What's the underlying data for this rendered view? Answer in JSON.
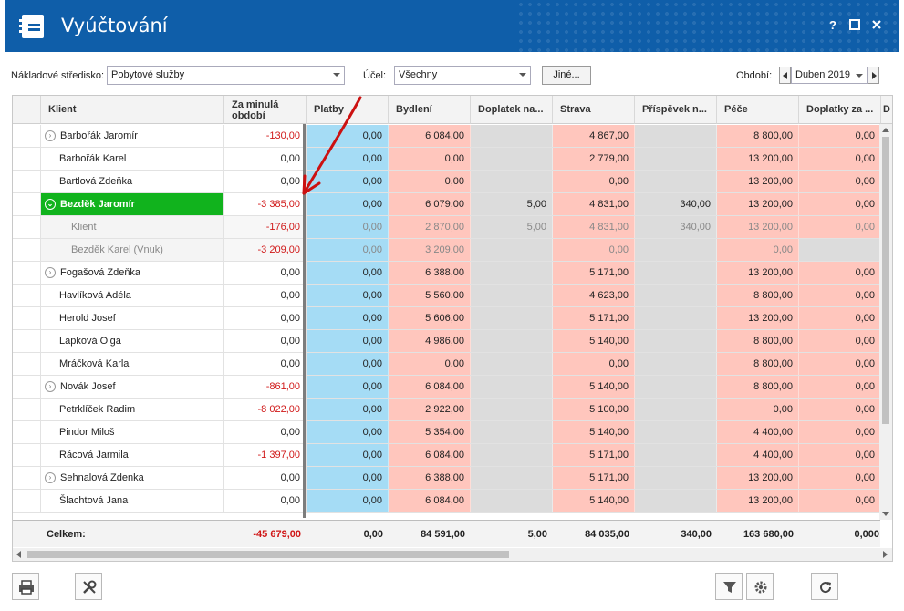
{
  "window": {
    "title": "Vyúčtování",
    "help_label": "?",
    "maximize_label": "□",
    "close_label": "✕",
    "icon": "ledger-icon",
    "accent": "#0f5ea9"
  },
  "filters": {
    "cost_center_label": "Nákladové středisko:",
    "cost_center_value": "Pobytové služby",
    "purpose_label": "Účel:",
    "purpose_value": "Všechny",
    "other_button": "Jiné...",
    "period_label": "Období:",
    "period_value": "Duben 2019"
  },
  "columns": {
    "client": "Klient",
    "previous_period_line1": "Za minulá",
    "previous_period_line2": "období",
    "payments": "Platby",
    "housing": "Bydlení",
    "surcharge": "Doplatek na...",
    "food": "Strava",
    "contribution": "Příspěvek n...",
    "care": "Péče",
    "surcharges_for": "Doplatky za ...",
    "next": "D"
  },
  "rows": [
    {
      "name": "Barbořák Jaromír",
      "prev": "-130,00",
      "pay": "0,00",
      "bydl": "6 084,00",
      "dopl": "",
      "strava": "4 867,00",
      "prisp": "",
      "pece": "8 800,00",
      "dopl2": "0,00"
    },
    {
      "name": "Barbořák Karel",
      "prev": "0,00",
      "pay": "0,00",
      "bydl": "0,00",
      "dopl": "",
      "strava": "2 779,00",
      "prisp": "",
      "pece": "13 200,00",
      "dopl2": "0,00"
    },
    {
      "name": "Bartlová Zdeňka",
      "prev": "0,00",
      "pay": "0,00",
      "bydl": "0,00",
      "dopl": "",
      "strava": "0,00",
      "prisp": "",
      "pece": "13 200,00",
      "dopl2": "0,00"
    },
    {
      "name": "Bezděk Jaromír",
      "prev": "-3 385,00",
      "pay": "0,00",
      "bydl": "6 079,00",
      "dopl": "5,00",
      "strava": "4 831,00",
      "prisp": "340,00",
      "pece": "13 200,00",
      "dopl2": "0,00"
    },
    {
      "name": "Klient",
      "prev": "-176,00",
      "pay": "0,00",
      "bydl": "2 870,00",
      "dopl": "5,00",
      "strava": "4 831,00",
      "prisp": "340,00",
      "pece": "13 200,00",
      "dopl2": "0,00"
    },
    {
      "name": "Bezděk Karel (Vnuk)",
      "prev": "-3 209,00",
      "pay": "0,00",
      "bydl": "3 209,00",
      "dopl": "",
      "strava": "0,00",
      "prisp": "",
      "pece": "0,00",
      "dopl2": ""
    },
    {
      "name": "Fogašová Zdeňka",
      "prev": "0,00",
      "pay": "0,00",
      "bydl": "6 388,00",
      "dopl": "",
      "strava": "5 171,00",
      "prisp": "",
      "pece": "13 200,00",
      "dopl2": "0,00"
    },
    {
      "name": "Havlíková Adéla",
      "prev": "0,00",
      "pay": "0,00",
      "bydl": "5 560,00",
      "dopl": "",
      "strava": "4 623,00",
      "prisp": "",
      "pece": "8 800,00",
      "dopl2": "0,00"
    },
    {
      "name": "Herold Josef",
      "prev": "0,00",
      "pay": "0,00",
      "bydl": "5 606,00",
      "dopl": "",
      "strava": "5 171,00",
      "prisp": "",
      "pece": "13 200,00",
      "dopl2": "0,00"
    },
    {
      "name": "Lapková Olga",
      "prev": "0,00",
      "pay": "0,00",
      "bydl": "4 986,00",
      "dopl": "",
      "strava": "5 140,00",
      "prisp": "",
      "pece": "8 800,00",
      "dopl2": "0,00"
    },
    {
      "name": "Mráčková Karla",
      "prev": "0,00",
      "pay": "0,00",
      "bydl": "0,00",
      "dopl": "",
      "strava": "0,00",
      "prisp": "",
      "pece": "8 800,00",
      "dopl2": "0,00"
    },
    {
      "name": "Novák Josef",
      "prev": "-861,00",
      "pay": "0,00",
      "bydl": "6 084,00",
      "dopl": "",
      "strava": "5 140,00",
      "prisp": "",
      "pece": "8 800,00",
      "dopl2": "0,00"
    },
    {
      "name": "Petrklíček Radim",
      "prev": "-8 022,00",
      "pay": "0,00",
      "bydl": "2 922,00",
      "dopl": "",
      "strava": "5 100,00",
      "prisp": "",
      "pece": "0,00",
      "dopl2": "0,00"
    },
    {
      "name": "Pindor Miloš",
      "prev": "0,00",
      "pay": "0,00",
      "bydl": "5 354,00",
      "dopl": "",
      "strava": "5 140,00",
      "prisp": "",
      "pece": "4 400,00",
      "dopl2": "0,00"
    },
    {
      "name": "Rácová Jarmila",
      "prev": "-1 397,00",
      "pay": "0,00",
      "bydl": "6 084,00",
      "dopl": "",
      "strava": "5 171,00",
      "prisp": "",
      "pece": "4 400,00",
      "dopl2": "0,00"
    },
    {
      "name": "Sehnalová Zdenka",
      "prev": "0,00",
      "pay": "0,00",
      "bydl": "6 388,00",
      "dopl": "",
      "strava": "5 171,00",
      "prisp": "",
      "pece": "13 200,00",
      "dopl2": "0,00"
    },
    {
      "name": "Šlachtová Jana",
      "prev": "0,00",
      "pay": "0,00",
      "bydl": "6 084,00",
      "dopl": "",
      "strava": "5 140,00",
      "prisp": "",
      "pece": "13 200,00",
      "dopl2": "0,00"
    }
  ],
  "totals": {
    "label": "Celkem:",
    "prev": "-45 679,00",
    "pay": "0,00",
    "bydl": "84 591,00",
    "dopl": "5,00",
    "strava": "84 035,00",
    "prisp": "340,00",
    "pece": "163 680,00",
    "dopl2": "0,000"
  },
  "toolbar": {
    "print": "printer-icon",
    "tools": "tools-icon",
    "filter": "filter-icon",
    "settings": "gear-icon",
    "refresh": "refresh-icon"
  }
}
